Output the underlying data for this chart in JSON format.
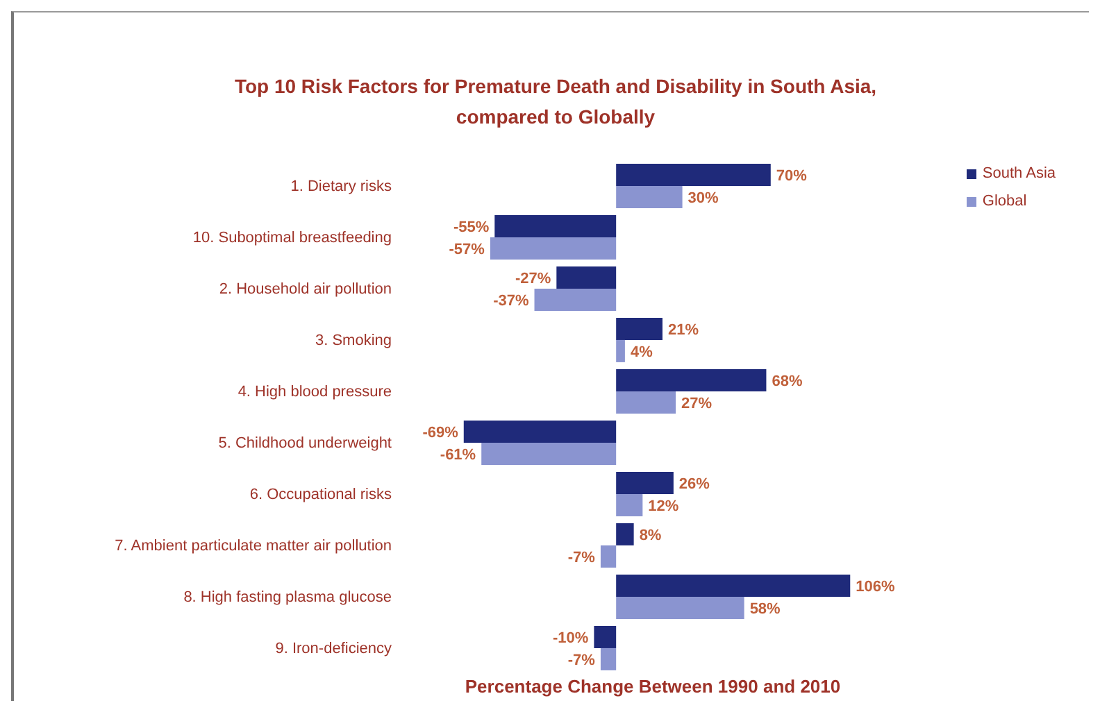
{
  "chart_data": {
    "type": "bar",
    "orientation": "horizontal",
    "title": "Top 10 Risk Factors for Premature Death and Disability in South Asia, compared to Globally",
    "xlabel": "Percentage Change Between 1990 and 2010",
    "categories": [
      "1. Dietary risks",
      "10. Suboptimal breastfeeding",
      "2. Household air pollution",
      "3. Smoking",
      "4. High blood pressure",
      "5. Childhood underweight",
      "6. Occupational risks",
      "7. Ambient particulate matter air pollution",
      "8. High fasting plasma glucose",
      "9. Iron-deficiency"
    ],
    "series": [
      {
        "name": "South Asia",
        "color": "#1f2a7a",
        "values": [
          70,
          -55,
          -27,
          21,
          68,
          -69,
          26,
          8,
          106,
          -10
        ],
        "value_labels": [
          "70%",
          "-55%",
          "-27%",
          "21%",
          "68%",
          "-69%",
          "26%",
          "8%",
          "106%",
          "-10%"
        ]
      },
      {
        "name": "Global",
        "color": "#8a94d0",
        "values": [
          30,
          -57,
          -37,
          4,
          27,
          -61,
          12,
          -7,
          58,
          -7
        ],
        "value_labels": [
          "30%",
          "-57%",
          "-37%",
          "4%",
          "27%",
          "-61%",
          "12%",
          "-7%",
          "58%",
          "-7%"
        ]
      }
    ],
    "legend": "top right"
  }
}
